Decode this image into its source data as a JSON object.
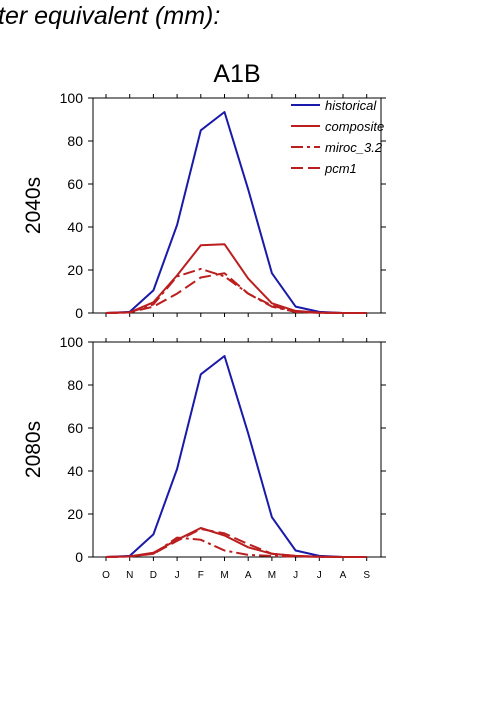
{
  "page": {
    "title": "ter equivalent (mm):",
    "scenario": "A1B"
  },
  "colors": {
    "historical": "#1a1aaa",
    "projection": "#bb1e1e"
  },
  "chart_data": [
    {
      "type": "line",
      "row_label": "2040s",
      "title": "A1B",
      "categories": [
        "O",
        "N",
        "D",
        "J",
        "F",
        "M",
        "A",
        "M",
        "J",
        "J",
        "A",
        "S"
      ],
      "ylim": [
        0,
        100
      ],
      "yticks": [
        0,
        20,
        40,
        60,
        80,
        100
      ],
      "legend": {
        "placement": "top-right"
      },
      "series": [
        {
          "name": "historical",
          "style": "solid",
          "values": [
            0,
            0.5,
            10.5,
            41,
            85,
            93.5,
            57.5,
            18.5,
            3,
            0.5,
            0,
            0
          ]
        },
        {
          "name": "composite",
          "style": "solid",
          "values": [
            0,
            0.3,
            5,
            17.5,
            31.5,
            32,
            16,
            4.5,
            1,
            0.2,
            0,
            0
          ]
        },
        {
          "name": "miroc_3.2",
          "style": "dashdot",
          "values": [
            0,
            0.3,
            4,
            17,
            20.5,
            17,
            9,
            3,
            0.5,
            0.1,
            0,
            0
          ]
        },
        {
          "name": "pcm1",
          "style": "dashed",
          "values": [
            0,
            0.3,
            3,
            9,
            16.5,
            18.5,
            9,
            3.5,
            0.5,
            0.1,
            0,
            0
          ]
        }
      ]
    },
    {
      "type": "line",
      "row_label": "2080s",
      "categories": [
        "O",
        "N",
        "D",
        "J",
        "F",
        "M",
        "A",
        "M",
        "J",
        "J",
        "A",
        "S"
      ],
      "ylim": [
        0,
        100
      ],
      "yticks": [
        0,
        20,
        40,
        60,
        80,
        100
      ],
      "series": [
        {
          "name": "historical",
          "style": "solid",
          "values": [
            0,
            0.5,
            10.5,
            41,
            85,
            93.5,
            57.5,
            18.5,
            3,
            0.5,
            0,
            0
          ]
        },
        {
          "name": "composite",
          "style": "solid",
          "values": [
            0,
            0.3,
            2,
            8,
            13.5,
            10,
            4.5,
            1.5,
            0.5,
            0.1,
            0,
            0
          ]
        },
        {
          "name": "miroc_3.2",
          "style": "dashdot",
          "values": [
            0,
            0.3,
            1.5,
            9,
            8,
            3,
            1,
            0.5,
            0.2,
            0.1,
            0,
            0
          ]
        },
        {
          "name": "pcm1",
          "style": "dashed",
          "values": [
            0,
            0.3,
            1.5,
            7.5,
            13,
            11,
            6,
            1.5,
            0.5,
            0.1,
            0,
            0
          ]
        }
      ]
    }
  ]
}
